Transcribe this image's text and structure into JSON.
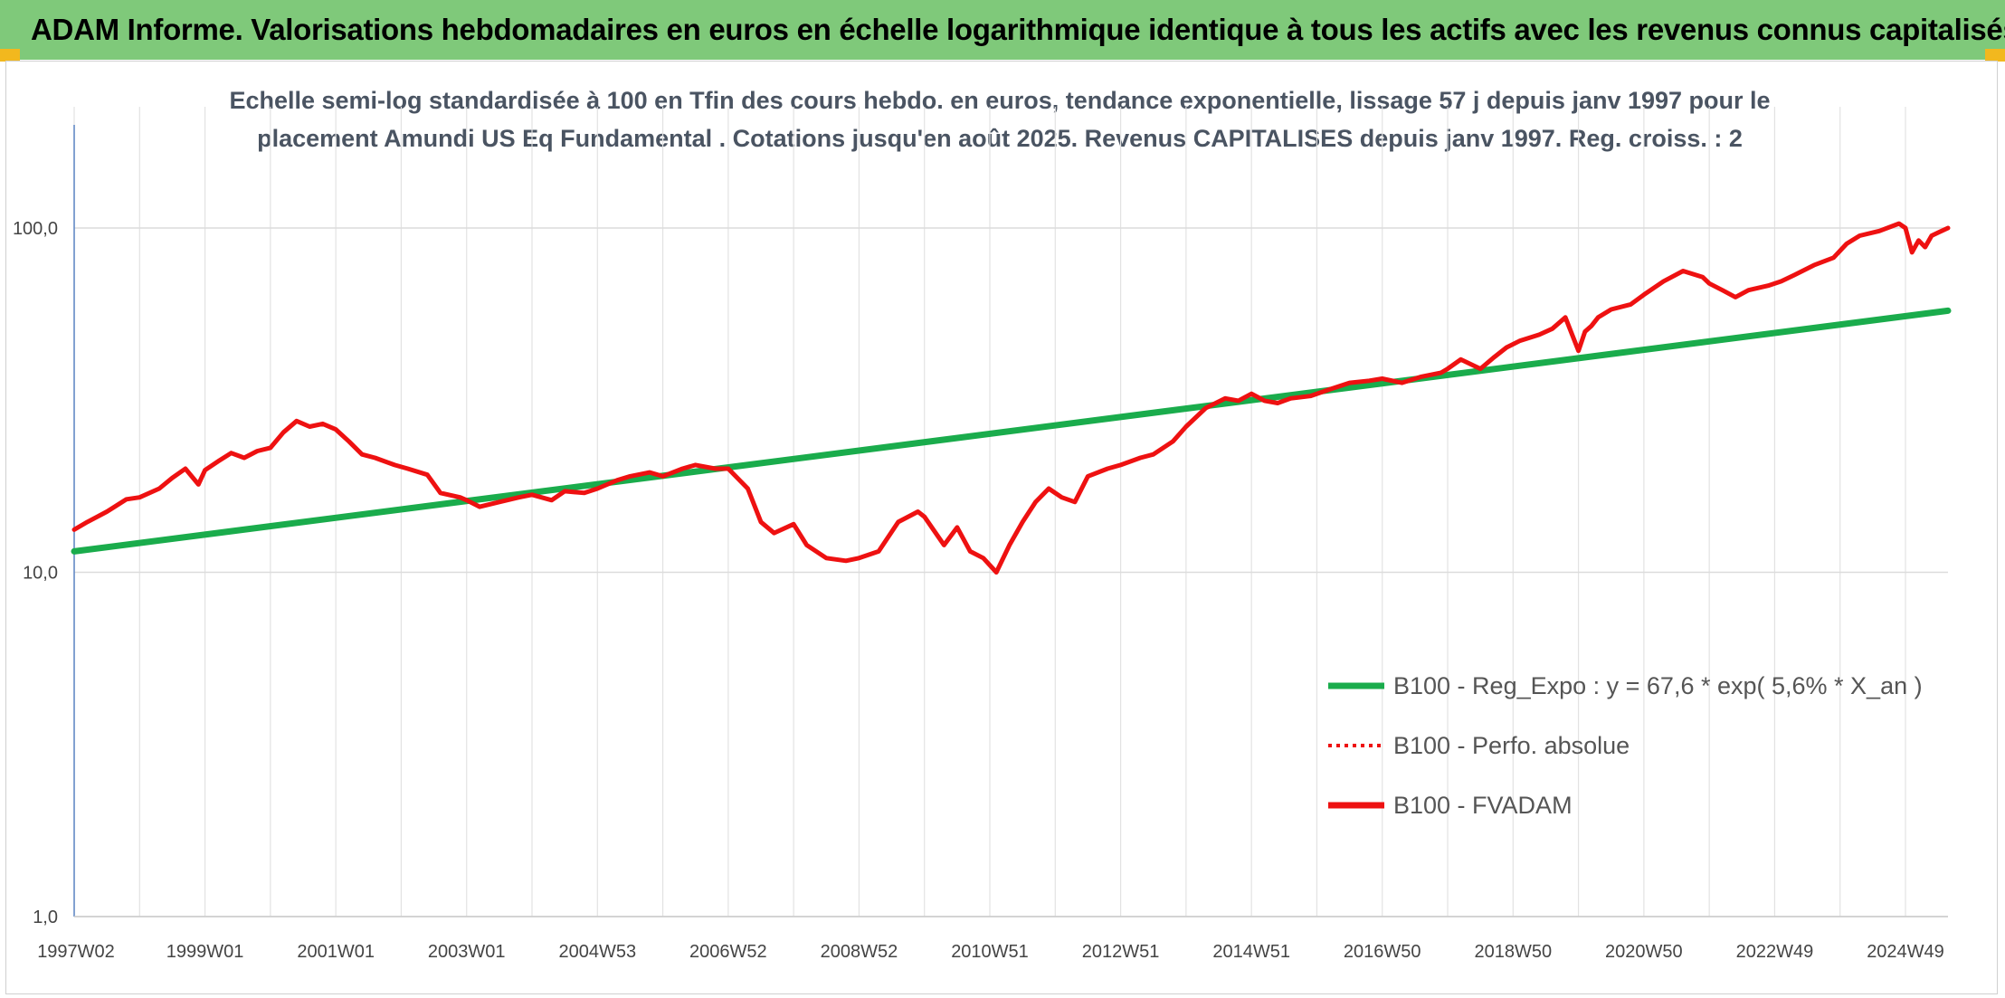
{
  "banner": {
    "title": "ADAM Informe. Valorisations hebdomadaires en euros en échelle logarithmique identique à tous les actifs avec les revenus connus capitalisés"
  },
  "colors": {
    "banner_bg": "#7fc97a",
    "trend": "#1aac4c",
    "series": "#ee1111"
  },
  "chart_data": {
    "type": "line",
    "title": "Echelle semi-log standardisée à 100 en Tfin des cours hebdo. en euros, tendance exponentielle, lissage 57 j depuis janv 1997 pour le placement Amundi US Eq Fundamental . Cotations jusqu'en août 2025. Revenus CAPITALISES depuis janv 1997. Reg. croiss. : 2",
    "y_scale": "log",
    "ylim": [
      1,
      100
    ],
    "y_ticks": [
      "1,0",
      "10,0",
      "100,0"
    ],
    "y_tick_values": [
      1,
      10,
      100
    ],
    "xlim": [
      1997.0,
      2025.65
    ],
    "x_ticks": [
      "1997W02",
      "1999W01",
      "2001W01",
      "2003W01",
      "2004W53",
      "2006W52",
      "2008W52",
      "2010W51",
      "2012W51",
      "2014W51",
      "2016W50",
      "2018W50",
      "2020W50",
      "2022W49",
      "2024W49"
    ],
    "x_tick_values": [
      1997.0,
      1999.0,
      2001.0,
      2003.0,
      2005.0,
      2007.0,
      2009.0,
      2011.0,
      2013.0,
      2015.0,
      2017.0,
      2019.0,
      2021.0,
      2023.0,
      2025.0
    ],
    "grid": true,
    "legend_position": "bottom-right",
    "series": [
      {
        "name": "B100 - Reg_Expo : y = 67,6 * exp( 5,6% *  X_an )",
        "style": "solid",
        "color": "#1aac4c",
        "x": [
          1997.0,
          2025.65
        ],
        "y": [
          11.5,
          57.5
        ]
      },
      {
        "name": "B100 - Perfo. absolue",
        "style": "dotted",
        "color": "#ee1111",
        "x": [],
        "y": []
      },
      {
        "name": "B100 - FVADAM",
        "style": "solid",
        "color": "#ee1111",
        "x": [
          1997.0,
          1997.2,
          1997.5,
          1997.8,
          1998.0,
          1998.3,
          1998.5,
          1998.7,
          1998.9,
          1999.0,
          1999.2,
          1999.4,
          1999.6,
          1999.8,
          2000.0,
          2000.2,
          2000.4,
          2000.6,
          2000.8,
          2001.0,
          2001.2,
          2001.4,
          2001.6,
          2001.9,
          2002.1,
          2002.4,
          2002.6,
          2002.9,
          2003.0,
          2003.2,
          2003.5,
          2003.8,
          2004.0,
          2004.3,
          2004.5,
          2004.8,
          2005.0,
          2005.3,
          2005.5,
          2005.8,
          2006.0,
          2006.3,
          2006.5,
          2006.8,
          2007.0,
          2007.3,
          2007.5,
          2007.7,
          2008.0,
          2008.2,
          2008.5,
          2008.8,
          2009.0,
          2009.3,
          2009.6,
          2009.9,
          2010.0,
          2010.3,
          2010.5,
          2010.7,
          2010.9,
          2011.1,
          2011.3,
          2011.5,
          2011.7,
          2011.9,
          2012.1,
          2012.3,
          2012.5,
          2012.8,
          2013.0,
          2013.3,
          2013.5,
          2013.8,
          2014.0,
          2014.3,
          2014.6,
          2014.8,
          2015.0,
          2015.2,
          2015.4,
          2015.6,
          2015.9,
          2016.2,
          2016.5,
          2016.8,
          2017.0,
          2017.3,
          2017.6,
          2017.9,
          2018.0,
          2018.2,
          2018.5,
          2018.7,
          2018.9,
          2019.1,
          2019.4,
          2019.6,
          2019.8,
          2020.0,
          2020.1,
          2020.2,
          2020.3,
          2020.5,
          2020.8,
          2021.0,
          2021.3,
          2021.6,
          2021.9,
          2022.0,
          2022.2,
          2022.4,
          2022.6,
          2022.9,
          2023.1,
          2023.3,
          2023.6,
          2023.9,
          2024.1,
          2024.3,
          2024.6,
          2024.9,
          2025.0,
          2025.1,
          2025.2,
          2025.3,
          2025.4,
          2025.5,
          2025.65
        ],
        "y": [
          13.3,
          14.0,
          15.0,
          16.3,
          16.5,
          17.5,
          18.8,
          20.0,
          18.0,
          19.8,
          21.0,
          22.2,
          21.5,
          22.5,
          23.0,
          25.5,
          27.5,
          26.5,
          27.0,
          26.0,
          24.0,
          22.0,
          21.5,
          20.5,
          20.0,
          19.2,
          17.0,
          16.5,
          16.2,
          15.5,
          16.0,
          16.5,
          16.8,
          16.2,
          17.2,
          17.0,
          17.5,
          18.5,
          19.0,
          19.5,
          19.0,
          20.0,
          20.5,
          20.0,
          20.0,
          17.5,
          14.0,
          13.0,
          13.8,
          12.0,
          11.0,
          10.8,
          11.0,
          11.5,
          14.0,
          15.0,
          14.5,
          12.0,
          13.5,
          11.5,
          11.0,
          10.0,
          12.0,
          14.0,
          16.0,
          17.5,
          16.5,
          16.0,
          19.0,
          20.0,
          20.5,
          21.5,
          22.0,
          24.0,
          26.5,
          30.0,
          32.0,
          31.5,
          33.0,
          31.5,
          31.0,
          32.0,
          32.5,
          34.0,
          35.5,
          36.0,
          36.5,
          35.5,
          37.0,
          38.0,
          39.0,
          41.5,
          39.0,
          42.0,
          45.0,
          47.0,
          49.0,
          51.0,
          55.0,
          44.0,
          50.0,
          52.0,
          55.0,
          58.0,
          60.0,
          64.0,
          70.0,
          75.0,
          72.0,
          69.0,
          66.0,
          63.0,
          66.0,
          68.0,
          70.0,
          73.0,
          78.0,
          82.0,
          90.0,
          95.0,
          98.0,
          103.0,
          100.0,
          85.0,
          92.0,
          88.0,
          95.0,
          97.0,
          100.0
        ]
      }
    ]
  }
}
